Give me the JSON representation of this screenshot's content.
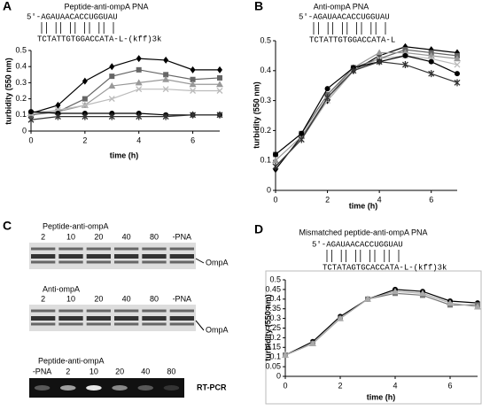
{
  "chart_data": [
    {
      "type": "line",
      "panel": "A",
      "title": "Peptide-anti-ompA PNA",
      "annotations": [
        "5'-AGAUAACACCUGGUAU",
        "TCTATTGTGGACCATA-L-(kff)3k"
      ],
      "y_label": "turbidity (550 nm)",
      "x_label": "time (h)",
      "x": [
        0,
        1,
        2,
        3,
        4,
        5,
        6,
        7
      ],
      "xlim": [
        0,
        7
      ],
      "xticks": [
        0,
        2,
        4,
        6
      ],
      "ylim": [
        0,
        0.5
      ],
      "yticks": [
        0,
        0.1,
        0.2,
        0.3,
        0.4,
        0.5
      ],
      "series": [
        {
          "color": "#000000",
          "marker": "diamond",
          "values": [
            0.11,
            0.16,
            0.31,
            0.4,
            0.45,
            0.44,
            0.38,
            0.38
          ]
        },
        {
          "color": "#666666",
          "marker": "square",
          "values": [
            0.1,
            0.12,
            0.2,
            0.34,
            0.38,
            0.35,
            0.32,
            0.33
          ]
        },
        {
          "color": "#999999",
          "marker": "triangle",
          "values": [
            0.11,
            0.12,
            0.16,
            0.28,
            0.3,
            0.32,
            0.29,
            0.29
          ]
        },
        {
          "color": "#bbbbbb",
          "marker": "x",
          "values": [
            0.11,
            0.13,
            0.16,
            0.2,
            0.26,
            0.26,
            0.25,
            0.25
          ]
        },
        {
          "color": "#000000",
          "marker": "circle",
          "values": [
            0.12,
            0.11,
            0.11,
            0.11,
            0.11,
            0.1,
            0.1,
            0.1
          ]
        },
        {
          "color": "#333333",
          "marker": "star",
          "values": [
            0.07,
            0.09,
            0.09,
            0.09,
            0.09,
            0.09,
            0.1,
            0.1
          ]
        }
      ]
    },
    {
      "type": "line",
      "panel": "B",
      "title": "Anti-ompA PNA",
      "annotations": [
        "5'-AGAUAACACCUGGUAU",
        "TCTATTGTGGACCATA-L"
      ],
      "y_label": "turbidity (550 nm)",
      "x_label": "time (h)",
      "x": [
        0,
        1,
        2,
        3,
        4,
        5,
        6,
        7
      ],
      "xlim": [
        0,
        7
      ],
      "xticks": [
        0,
        2,
        4,
        6
      ],
      "ylim": [
        0,
        0.5
      ],
      "yticks": [
        0,
        0.1,
        0.2,
        0.3,
        0.4,
        0.5
      ],
      "series": [
        {
          "color": "#000000",
          "marker": "diamond",
          "values": [
            0.07,
            0.18,
            0.3,
            0.4,
            0.45,
            0.48,
            0.47,
            0.46
          ]
        },
        {
          "color": "#666666",
          "marker": "square",
          "values": [
            0.12,
            0.19,
            0.32,
            0.41,
            0.44,
            0.47,
            0.46,
            0.45
          ]
        },
        {
          "color": "#999999",
          "marker": "triangle",
          "values": [
            0.1,
            0.18,
            0.31,
            0.41,
            0.46,
            0.46,
            0.45,
            0.44
          ]
        },
        {
          "color": "#bbbbbb",
          "marker": "x",
          "values": [
            0.08,
            0.17,
            0.3,
            0.4,
            0.44,
            0.45,
            0.44,
            0.42
          ]
        },
        {
          "color": "#000000",
          "marker": "circle",
          "values": [
            0.12,
            0.19,
            0.34,
            0.41,
            0.43,
            0.45,
            0.43,
            0.39
          ]
        },
        {
          "color": "#333333",
          "marker": "star",
          "values": [
            0.08,
            0.17,
            0.31,
            0.4,
            0.43,
            0.42,
            0.39,
            0.36
          ]
        }
      ]
    },
    {
      "type": "line",
      "panel": "D",
      "title": "Mismatched peptide-anti-ompA PNA",
      "annotations": [
        "5'-AGAUAACACCUGGUAU",
        "TCTATAGTGCACCATA-L-(kff)3k"
      ],
      "y_label": "turbidity (550 nm)",
      "x_label": "time (h)",
      "x": [
        0,
        1,
        2,
        3,
        4,
        5,
        6,
        7
      ],
      "xlim": [
        0,
        7
      ],
      "xticks": [
        0,
        2,
        4,
        6
      ],
      "ylim": [
        0,
        0.5
      ],
      "yticks": [
        0,
        0.05,
        0.1,
        0.15,
        0.2,
        0.25,
        0.3,
        0.35,
        0.4,
        0.45,
        0.5
      ],
      "series": [
        {
          "color": "#000000",
          "marker": "circle",
          "values": [
            0.11,
            0.18,
            0.31,
            0.4,
            0.45,
            0.44,
            0.39,
            0.38
          ]
        },
        {
          "color": "#777777",
          "marker": "square",
          "values": [
            0.11,
            0.17,
            0.3,
            0.4,
            0.43,
            0.42,
            0.37,
            0.37
          ]
        },
        {
          "color": "#aaaaaa",
          "marker": "triangle",
          "values": [
            0.11,
            0.17,
            0.3,
            0.4,
            0.44,
            0.43,
            0.38,
            0.36
          ]
        }
      ]
    }
  ],
  "panel_c": {
    "panel": "C",
    "gels": [
      {
        "title": "Peptide-anti-ompA",
        "lanes": [
          "2",
          "10",
          "20",
          "40",
          "80",
          "-PNA"
        ],
        "band_label": "OmpA"
      },
      {
        "title": "Anti-ompA",
        "lanes": [
          "2",
          "10",
          "20",
          "40",
          "80",
          "-PNA"
        ],
        "band_label": "OmpA"
      },
      {
        "title": "Peptide-anti-ompA",
        "lanes": [
          "-PNA",
          "2",
          "10",
          "20",
          "40",
          "80"
        ],
        "band_label": "RT-PCR"
      }
    ]
  }
}
